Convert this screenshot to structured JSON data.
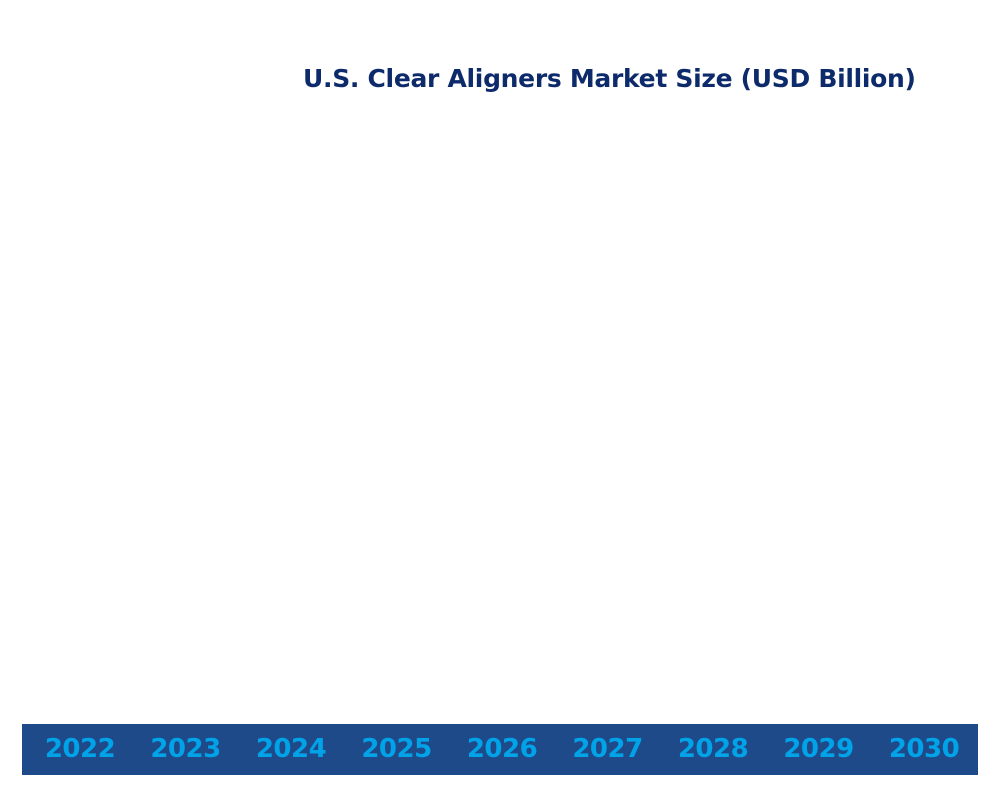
{
  "chart_data": {
    "type": "bar",
    "title": "U.S. Clear Aligners Market Size (USD Billion)",
    "categories": [
      "2022",
      "2023",
      "2024",
      "2025",
      "2026",
      "2027",
      "2028",
      "2029",
      "2030"
    ],
    "series": [],
    "xlabel": "",
    "ylabel": "",
    "grid": false
  },
  "colors": {
    "title": "#0d2a6b",
    "axis_band": "#1f4a8a",
    "year_label": "#00a3e8"
  }
}
